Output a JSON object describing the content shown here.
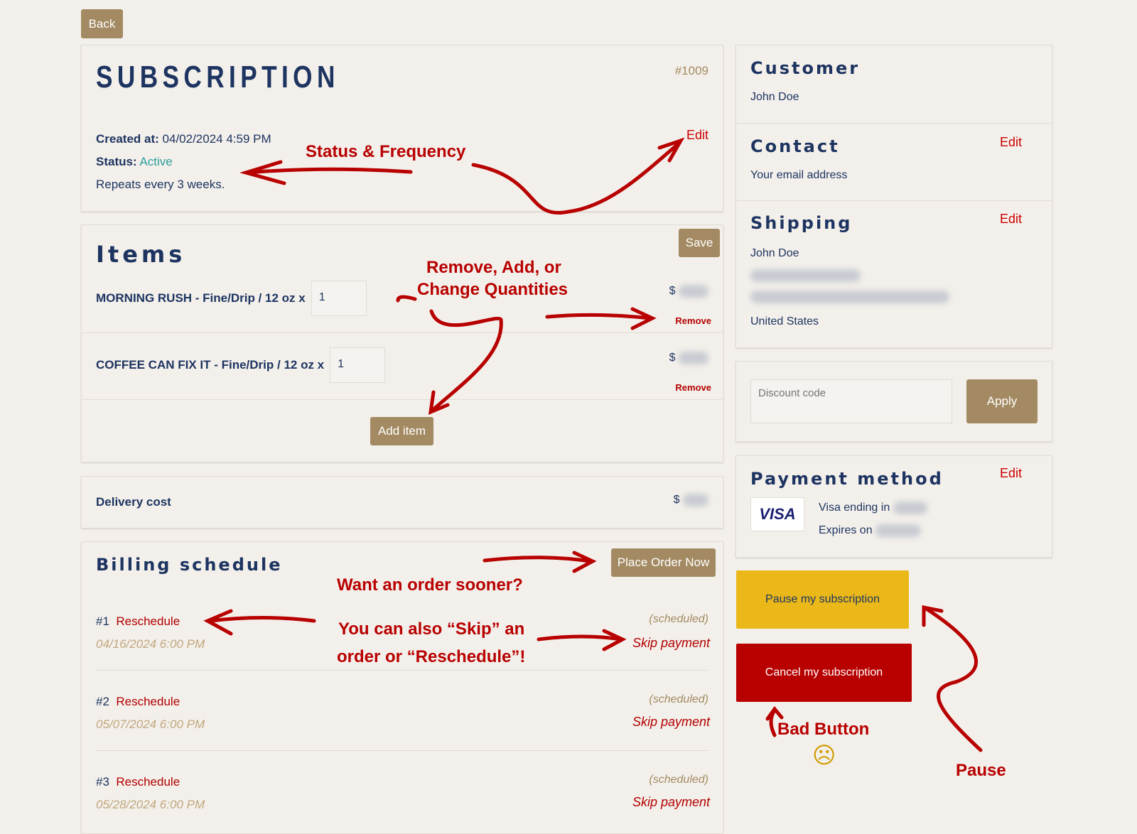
{
  "back_label": "Back",
  "subscription": {
    "title": "SUBSCRIPTION",
    "number": "#1009",
    "created_label": "Created at:",
    "created_value": "04/02/2024 4:59 PM",
    "status_label": "Status:",
    "status_value": "Active",
    "repeat": "Repeats every 3 weeks.",
    "edit": "Edit"
  },
  "items": {
    "title": "Items",
    "save": "Save",
    "add_item": "Add item",
    "rows": [
      {
        "name": "MORNING RUSH - Fine/Drip / 12 oz x",
        "qty": "1",
        "currency": "$",
        "remove": "Remove"
      },
      {
        "name": "COFFEE CAN FIX IT - Fine/Drip / 12 oz x",
        "qty": "1",
        "currency": "$",
        "remove": "Remove"
      }
    ]
  },
  "delivery": {
    "label": "Delivery cost",
    "currency": "$"
  },
  "billing": {
    "title": "Billing schedule",
    "place_order": "Place Order Now",
    "rows": [
      {
        "num": "#1",
        "reschedule": "Reschedule",
        "date": "04/16/2024 6:00 PM",
        "status": "(scheduled)",
        "skip": "Skip payment"
      },
      {
        "num": "#2",
        "reschedule": "Reschedule",
        "date": "05/07/2024 6:00 PM",
        "status": "(scheduled)",
        "skip": "Skip payment"
      },
      {
        "num": "#3",
        "reschedule": "Reschedule",
        "date": "05/28/2024 6:00 PM",
        "status": "(scheduled)",
        "skip": "Skip payment"
      }
    ]
  },
  "customer": {
    "title": "Customer",
    "name": "John Doe"
  },
  "contact": {
    "title": "Contact",
    "email": "Your email address",
    "edit": "Edit"
  },
  "shipping": {
    "title": "Shipping",
    "name": "John Doe",
    "country": "United States",
    "edit": "Edit"
  },
  "discount": {
    "placeholder": "Discount code",
    "apply": "Apply"
  },
  "payment": {
    "title": "Payment method",
    "brand": "VISA",
    "ending": "Visa ending in",
    "expires": "Expires on",
    "edit": "Edit"
  },
  "pause_label": "Pause my subscription",
  "cancel_label": "Cancel my subscription",
  "annotations": {
    "status_frequency": "Status & Frequency",
    "remove_add": "Remove, Add, or",
    "change_qty": "Change Quantities",
    "order_sooner": "Want an order sooner?",
    "skip1": "You can also “Skip” an",
    "skip2": "order or “Reschedule”!",
    "bad_button": "Bad Button",
    "pause": "Pause",
    "sad_face": "☹"
  },
  "colors": {
    "accent": "#a38a62",
    "navy": "#1d3461",
    "danger": "#b80000",
    "pause": "#ebb81a",
    "active": "#2a9d9a"
  }
}
